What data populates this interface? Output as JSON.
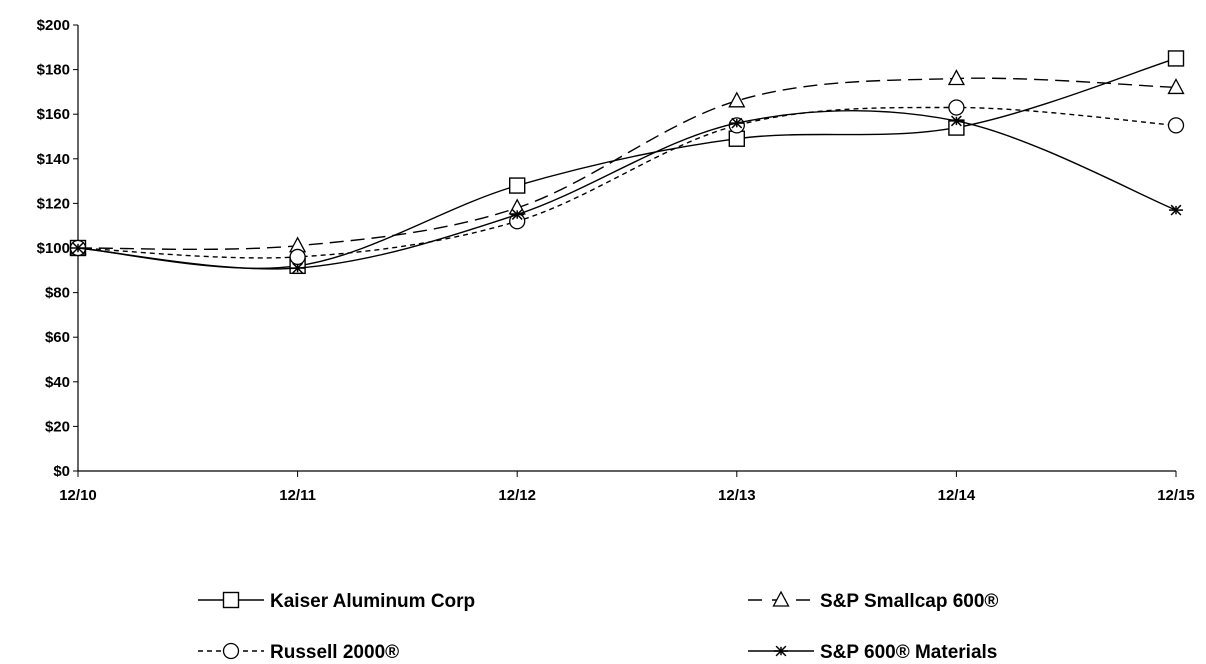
{
  "chart_data": {
    "type": "line",
    "title": "",
    "xlabel": "",
    "ylabel": "",
    "x": [
      "12/10",
      "12/11",
      "12/12",
      "12/13",
      "12/14",
      "12/15"
    ],
    "y_ticks": [
      "$0",
      "$20",
      "$40",
      "$60",
      "$80",
      "$100",
      "$120",
      "$140",
      "$160",
      "$180",
      "$200"
    ],
    "ylim": [
      0,
      200
    ],
    "grid": false,
    "legend_position": "bottom",
    "series": [
      {
        "name": "Kaiser Aluminum Corp",
        "marker": "square",
        "line_style": "solid",
        "values": [
          100,
          92,
          128,
          149,
          154,
          185
        ]
      },
      {
        "name": "S&P Smallcap 600®",
        "marker": "triangle",
        "line_style": "long-dash",
        "values": [
          100,
          101,
          118,
          166,
          176,
          172
        ]
      },
      {
        "name": "Russell 2000®",
        "marker": "circle",
        "line_style": "short-dash",
        "values": [
          100,
          96,
          112,
          155,
          163,
          155
        ]
      },
      {
        "name": "S&P 600® Materials",
        "marker": "asterisk",
        "line_style": "solid",
        "values": [
          100,
          91,
          115,
          156,
          157,
          117
        ]
      }
    ]
  }
}
